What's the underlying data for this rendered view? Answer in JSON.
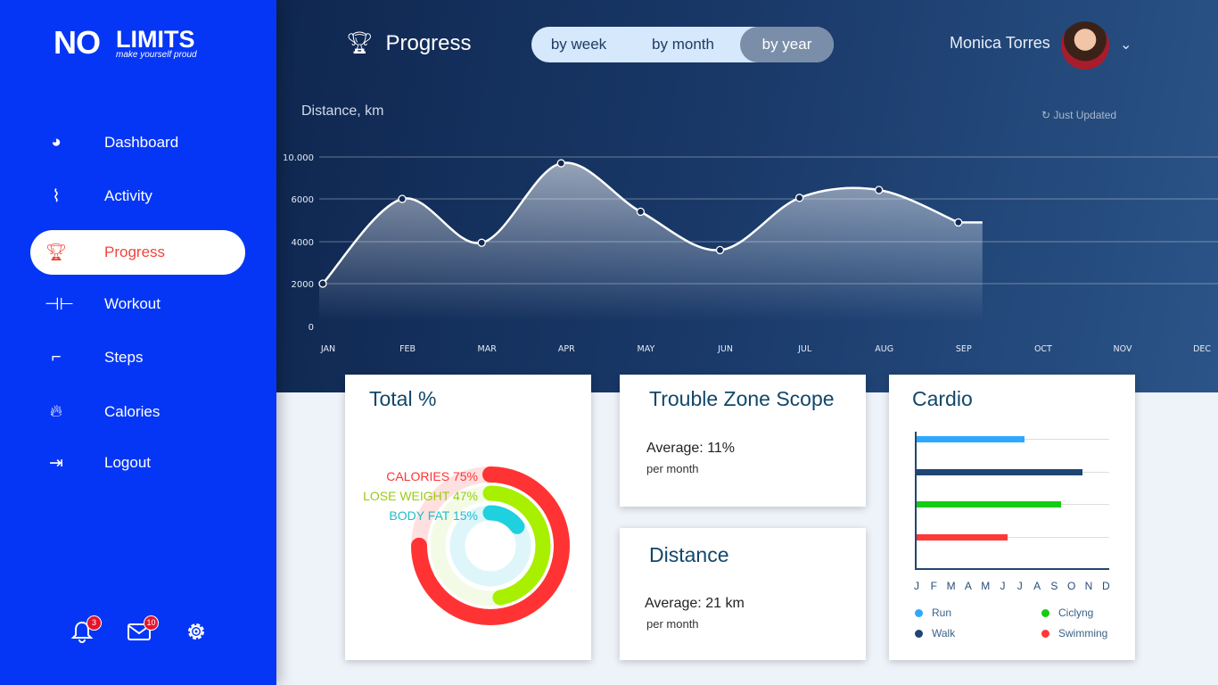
{
  "brand": {
    "logo_main": "NO",
    "logo_limits": "LIMITS",
    "tagline": "make yourself proud"
  },
  "sidebar": {
    "items": [
      {
        "label": "Dashboard",
        "icon": "dashboard-gauge-icon"
      },
      {
        "label": "Activity",
        "icon": "pulse-icon"
      },
      {
        "label": "Progress",
        "icon": "trophy-icon",
        "active": true
      },
      {
        "label": "Workout",
        "icon": "dumbbell-icon"
      },
      {
        "label": "Steps",
        "icon": "shoe-icon"
      },
      {
        "label": "Calories",
        "icon": "flame-icon"
      },
      {
        "label": "Logout",
        "icon": "logout-icon"
      }
    ],
    "notifications": "3",
    "messages": "10"
  },
  "header": {
    "title": "Progress",
    "periods": [
      "by week",
      "by month",
      "by year"
    ],
    "selected_period": "by year",
    "user": "Monica Torres",
    "status": "Just Updated"
  },
  "chart_data": {
    "type": "area",
    "ylabel": "Distance, km",
    "y_ticks": [
      {
        "label": "0",
        "v": 0
      },
      {
        "label": "2000",
        "v": 2000
      },
      {
        "label": "4000",
        "v": 4000
      },
      {
        "label": "6000",
        "v": 6000
      },
      {
        "label": "10.000",
        "v": 10000
      }
    ],
    "categories": [
      "JAN",
      "FEB",
      "MAR",
      "APR",
      "MAY",
      "JUN",
      "JUL",
      "AUG",
      "SEP",
      "OCT",
      "NOV",
      "DEC"
    ],
    "values": [
      2000,
      6000,
      3950,
      9400,
      5400,
      3600,
      6100,
      6850,
      4900,
      null,
      null,
      null
    ]
  },
  "total": {
    "title": "Total %",
    "rings": [
      {
        "label": "CALORIES 75%",
        "value": 75,
        "color": "#ff3333",
        "track": "#ffe0e0"
      },
      {
        "label": "LOSE WEIGHT 47%",
        "value": 47,
        "color": "#a8f000",
        "track": "#f3fbe6"
      },
      {
        "label": "BODY FAT 15%",
        "value": 15,
        "color": "#1fd0de",
        "track": "#def6f9"
      }
    ]
  },
  "trouble": {
    "title": "Trouble Zone Scope",
    "average": "Average: 11%",
    "per": "per month"
  },
  "distance": {
    "title": "Distance",
    "average": "Average: 21 km",
    "per": "per month"
  },
  "cardio": {
    "title": "Cardio",
    "months": [
      "J",
      "F",
      "M",
      "A",
      "M",
      "J",
      "J",
      "A",
      "S",
      "O",
      "N",
      "D"
    ],
    "series": [
      {
        "name": "Run",
        "value": 0.56,
        "color": "#2ea8ff"
      },
      {
        "name": "Walk",
        "value": 0.86,
        "color": "#1f4573"
      },
      {
        "name": "Ciclyng",
        "value": 0.75,
        "color": "#15cc15"
      },
      {
        "name": "Swimming",
        "value": 0.47,
        "color": "#ff3838"
      }
    ]
  }
}
